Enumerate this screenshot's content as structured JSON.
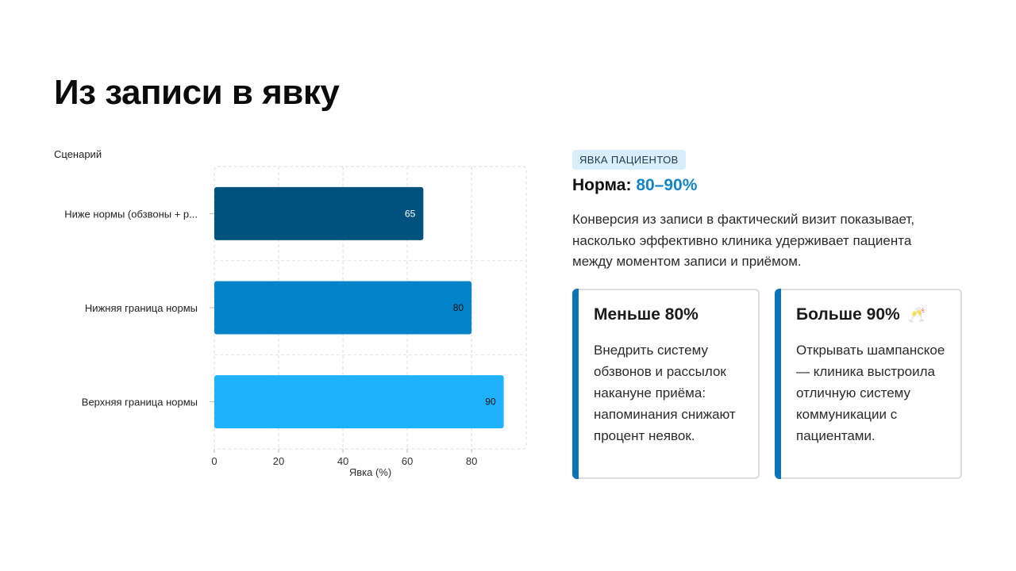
{
  "slide": {
    "title": "Из записи в явку"
  },
  "chart_data": {
    "type": "bar",
    "orientation": "horizontal",
    "ylabel": "Сценарий",
    "xlabel": "Явка (%)",
    "categories": [
      "Ниже нормы (обзвоны + р...",
      "Нижняя граница нормы",
      "Верхняя граница нормы"
    ],
    "values": [
      65,
      80,
      90
    ],
    "data_labels": [
      "65",
      "80",
      "90"
    ],
    "colors": [
      "#00527e",
      "#0383c9",
      "#1db2fb"
    ],
    "xlim": [
      0,
      97
    ],
    "xticks": [
      0,
      20,
      40,
      60,
      80
    ],
    "grid": true
  },
  "info": {
    "badge": "ЯВКА ПАЦИЕНТОВ",
    "norm_label": "Норма:",
    "norm_value": "80–90%",
    "description": "Конверсия из записи в фактический визит показывает, насколько эффективно клиника удерживает пациента между моментом записи и приёмом."
  },
  "cards": [
    {
      "title": "Меньше 80%",
      "text": "Внедрить систему обзвонов и рассылок накануне приёма: напоминания снижают процент неявок."
    },
    {
      "title": "Больше 90%",
      "icon": "champagne-glasses-icon",
      "icon_glyph": "🥂",
      "text": "Открывать шампанское — клиника выстроила отличную систему коммуникации с пациентами."
    }
  ],
  "colors": {
    "accent": "#0a74b6",
    "norm_value": "#1384c4",
    "badge_bg": "#d8eefa"
  }
}
